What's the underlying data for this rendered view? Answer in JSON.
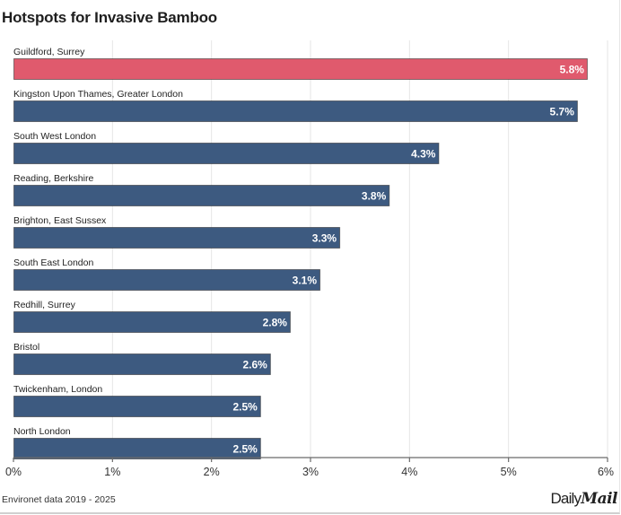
{
  "chart_data": {
    "type": "bar",
    "orientation": "horizontal",
    "title": "Hotspots for Invasive Bamboo",
    "xlabel": "",
    "ylabel": "",
    "xlim": [
      0,
      6
    ],
    "x_ticks": [
      0,
      1,
      2,
      3,
      4,
      5,
      6
    ],
    "x_tick_labels": [
      "0%",
      "1%",
      "2%",
      "3%",
      "4%",
      "5%",
      "6%"
    ],
    "grid": true,
    "categories": [
      "Guildford, Surrey",
      "Kingston Upon Thames, Greater London",
      "South West London",
      "Reading, Berkshire",
      "Brighton, East Sussex",
      "South East London",
      "Redhill, Surrey",
      "Bristol",
      "Twickenham, London",
      "North London"
    ],
    "values": [
      5.8,
      5.7,
      4.3,
      3.8,
      3.3,
      3.1,
      2.8,
      2.6,
      2.5,
      2.5
    ],
    "value_labels": [
      "5.8%",
      "5.7%",
      "4.3%",
      "3.8%",
      "3.3%",
      "3.1%",
      "2.8%",
      "2.6%",
      "2.5%",
      "2.5%"
    ],
    "highlight_index": 0,
    "colors": {
      "highlight": "#e05a6d",
      "default": "#3d5a80",
      "label_text": "#ffffff",
      "gridline": "#e6e6e6",
      "axis": "#6b6b6b"
    }
  },
  "footer": {
    "source": "Environet data 2019 - 2025",
    "brand_daily": "Daily",
    "brand_mail": "Mail"
  }
}
